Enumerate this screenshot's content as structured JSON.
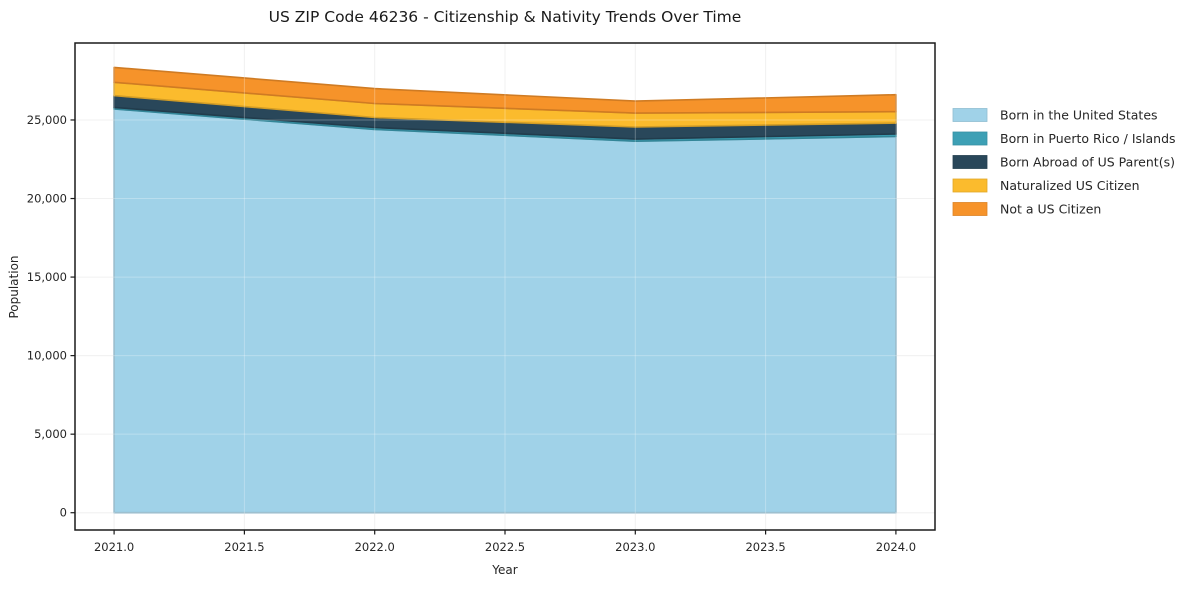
{
  "chart_data": {
    "type": "area",
    "stacked": true,
    "title": "US ZIP Code 46236 - Citizenship & Nativity Trends Over Time",
    "xlabel": "Year",
    "ylabel": "Population",
    "x": [
      2021,
      2022,
      2023,
      2024
    ],
    "series": [
      {
        "name": "Born in the United States",
        "color": "#A0D2E8",
        "values": [
          25700,
          24400,
          23650,
          23950
        ]
      },
      {
        "name": "Born in Puerto Rico / Islands",
        "color": "#3DA0B5",
        "values": [
          100,
          120,
          130,
          160
        ]
      },
      {
        "name": "Born Abroad of US Parent(s)",
        "color": "#29475A",
        "values": [
          750,
          640,
          770,
          690
        ]
      },
      {
        "name": "Naturalized US Citizen",
        "color": "#FBBB2D",
        "values": [
          850,
          890,
          890,
          730
        ]
      },
      {
        "name": "Not a US Citizen",
        "color": "#F6932A",
        "values": [
          950,
          950,
          760,
          1080
        ]
      }
    ],
    "xlim": [
      2020.85,
      2024.15
    ],
    "ylim": [
      -1100,
      29900
    ],
    "x_ticks": [
      2021.0,
      2021.5,
      2022.0,
      2022.5,
      2023.0,
      2023.5,
      2024.0
    ],
    "x_tick_labels": [
      "2021.0",
      "2021.5",
      "2022.0",
      "2022.5",
      "2023.0",
      "2023.5",
      "2024.0"
    ],
    "y_ticks": [
      0,
      5000,
      10000,
      15000,
      20000,
      25000
    ],
    "y_tick_labels": [
      "0",
      "5,000",
      "10,000",
      "15,000",
      "20,000",
      "25,000"
    ],
    "grid": true,
    "legend_position": "right of plot, no frame"
  }
}
